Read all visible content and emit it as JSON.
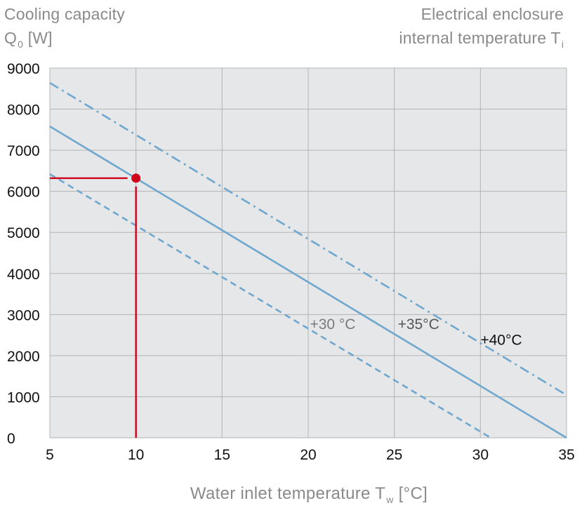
{
  "title_left": {
    "line1": "Cooling capacity",
    "line2_main": "Q",
    "line2_sub": "0",
    "line2_unit": "[W]"
  },
  "title_right": {
    "line1": "Electrical enclosure",
    "line2_main": "internal temperature T",
    "line2_sub": "i"
  },
  "x_label": {
    "main": "Water inlet temperature T",
    "sub": "w",
    "unit": "[°C]"
  },
  "colors": {
    "series": "#6fa7cf",
    "marker": "#d0021b",
    "grid": "#b4b4b4",
    "plot_bg": "#e6e7e8"
  },
  "chart_data": {
    "type": "line",
    "title": "",
    "xlabel": "Water inlet temperature Tw [°C]",
    "ylabel": "Cooling capacity Q0 [W]",
    "xlim": [
      5,
      35
    ],
    "ylim": [
      0,
      9000
    ],
    "x_ticks": [
      5,
      10,
      15,
      20,
      25,
      30,
      35
    ],
    "y_ticks": [
      0,
      1000,
      2000,
      3000,
      4000,
      5000,
      6000,
      7000,
      8000,
      9000
    ],
    "grid": true,
    "series": [
      {
        "name": "+30 °C",
        "label": "+30 °C",
        "style": "dashed",
        "label_color": "#7a7a7a",
        "x": [
          5,
          30.6
        ],
        "y": [
          6420,
          0
        ],
        "label_at": [
          20.1,
          2650
        ]
      },
      {
        "name": "+35 °C",
        "label": "+35°C",
        "style": "solid",
        "label_color": "#555555",
        "x": [
          5,
          35
        ],
        "y": [
          7580,
          0
        ],
        "label_at": [
          25.2,
          2650
        ]
      },
      {
        "name": "+40 °C",
        "label": "+40°C",
        "style": "dashdot",
        "label_color": "#111111",
        "x": [
          5,
          35
        ],
        "y": [
          8640,
          1040
        ],
        "label_at": [
          30.0,
          2260
        ]
      }
    ],
    "annotation": {
      "point": [
        10,
        6320
      ],
      "description": "Operating point"
    }
  }
}
